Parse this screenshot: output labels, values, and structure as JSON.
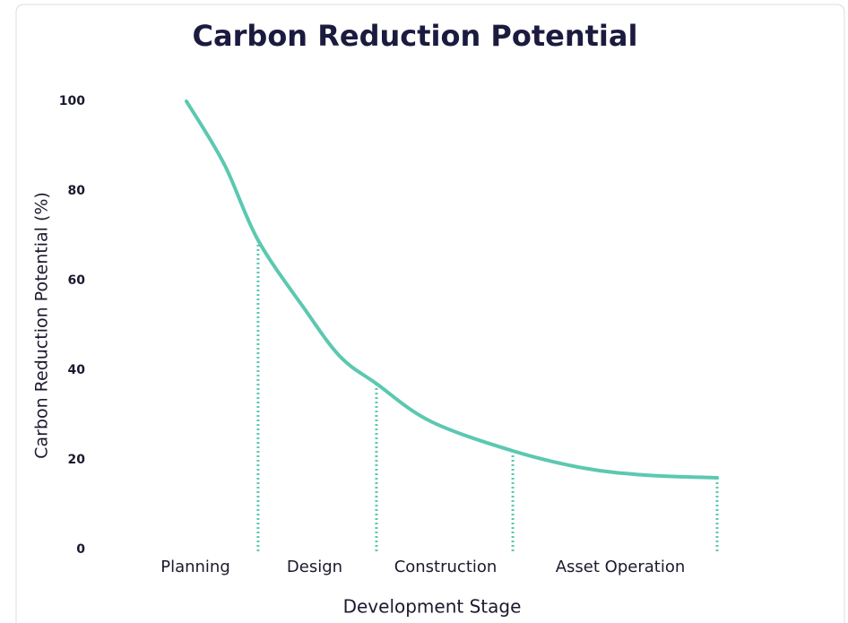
{
  "chart_data": {
    "type": "line",
    "title": "Carbon Reduction Potential",
    "x_label": "Development Stage",
    "y_label": "Carbon Reduction Potential (%)",
    "categories": [
      "Planning",
      "Design",
      "Construction",
      "Asset Operation"
    ],
    "x": [
      0,
      7.1,
      13.5,
      22.3,
      29,
      35.8,
      46,
      61.5,
      74.7,
      86.5,
      100
    ],
    "values": [
      100,
      86,
      69,
      53.6,
      43,
      37,
      28.6,
      22,
      18.2,
      16.6,
      16
    ],
    "color": "#5cc8b0",
    "dividers": {
      "x": [
        13.5,
        35.8,
        61.5,
        100
      ],
      "values": [
        69,
        37,
        22,
        16
      ]
    },
    "xlim": [
      0,
      100
    ],
    "ylim": [
      0,
      100
    ],
    "yticks": [
      0,
      20,
      40,
      60,
      80,
      100
    ],
    "grid": false
  }
}
